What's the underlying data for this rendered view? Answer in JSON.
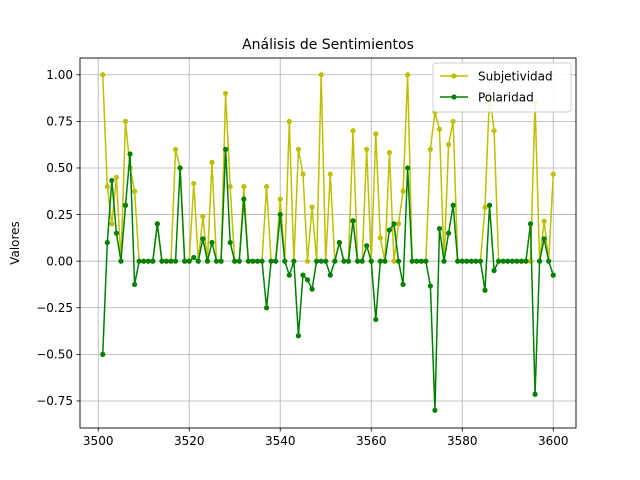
{
  "chart_data": {
    "type": "line",
    "title": "Análisis de Sentimientos",
    "xlabel": "",
    "ylabel": "Valores",
    "xlim": [
      3496,
      3605
    ],
    "ylim": [
      -0.895,
      1.09
    ],
    "x_ticks": [
      3500,
      3520,
      3540,
      3560,
      3580,
      3600
    ],
    "y_ticks": [
      -0.75,
      -0.5,
      -0.25,
      0.0,
      0.25,
      0.5,
      0.75,
      1.0
    ],
    "x_tick_labels": [
      "3500",
      "3520",
      "3540",
      "3560",
      "3580",
      "3600"
    ],
    "y_tick_labels": [
      "−0.75",
      "−0.50",
      "−0.25",
      "0.00",
      "0.25",
      "0.50",
      "0.75",
      "1.00"
    ],
    "grid": true,
    "legend_position": "top-right",
    "x": [
      3501,
      3502,
      3503,
      3504,
      3505,
      3506,
      3507,
      3508,
      3509,
      3510,
      3511,
      3512,
      3513,
      3514,
      3515,
      3516,
      3517,
      3518,
      3519,
      3520,
      3521,
      3522,
      3523,
      3524,
      3525,
      3526,
      3527,
      3528,
      3529,
      3530,
      3531,
      3532,
      3533,
      3534,
      3535,
      3536,
      3537,
      3538,
      3539,
      3540,
      3541,
      3542,
      3543,
      3544,
      3545,
      3546,
      3547,
      3548,
      3549,
      3550,
      3551,
      3552,
      3553,
      3554,
      3555,
      3556,
      3557,
      3558,
      3559,
      3560,
      3561,
      3562,
      3563,
      3564,
      3565,
      3566,
      3567,
      3568,
      3569,
      3570,
      3571,
      3572,
      3573,
      3574,
      3575,
      3576,
      3577,
      3578,
      3579,
      3580,
      3581,
      3582,
      3583,
      3584,
      3585,
      3586,
      3587,
      3588,
      3589,
      3590,
      3591,
      3592,
      3593,
      3594,
      3595,
      3596,
      3597,
      3598,
      3599,
      3600
    ],
    "series": [
      {
        "name": "Subjetividad",
        "color": "#bfbf00",
        "values": [
          1.0,
          0.4,
          0.2,
          0.45,
          0.0,
          0.75,
          0.5,
          0.375,
          0.0,
          0.0,
          0.0,
          0.0,
          0.2,
          0.0,
          0.0,
          0.0,
          0.6,
          0.5,
          0.0,
          0.0,
          0.417,
          0.0,
          0.24,
          0.0,
          0.53,
          0.0,
          0.0,
          0.9,
          0.4,
          0.0,
          0.0,
          0.4,
          0.0,
          0.0,
          0.0,
          0.0,
          0.4,
          0.0,
          0.0,
          0.333,
          0.0,
          0.75,
          0.0,
          0.6,
          0.467,
          0.0,
          0.29,
          0.0,
          1.0,
          0.0,
          0.467,
          0.0,
          0.1,
          0.0,
          0.0,
          0.7,
          0.0,
          0.0,
          0.6,
          0.0,
          0.683,
          0.125,
          0.0,
          0.583,
          0.0,
          0.2,
          0.375,
          1.0,
          0.0,
          0.0,
          0.0,
          0.0,
          0.6,
          0.8,
          0.708,
          0.0,
          0.625,
          0.75,
          0.0,
          0.0,
          0.0,
          0.0,
          0.0,
          0.0,
          0.288,
          0.9,
          0.7,
          0.0,
          0.0,
          0.0,
          0.0,
          0.0,
          0.0,
          0.0,
          0.0,
          0.85,
          0.0,
          0.215,
          0.0,
          0.467
        ]
      },
      {
        "name": "Polaridad",
        "color": "#008000",
        "values": [
          -0.5,
          0.1,
          0.433,
          0.15,
          0.0,
          0.3,
          0.575,
          -0.125,
          0.0,
          0.0,
          0.0,
          0.0,
          0.2,
          0.0,
          0.0,
          0.0,
          0.0,
          0.5,
          0.0,
          0.0,
          0.02,
          0.0,
          0.12,
          0.0,
          0.1,
          0.0,
          0.0,
          0.6,
          0.1,
          0.0,
          0.0,
          0.333,
          0.0,
          0.0,
          0.0,
          0.0,
          -0.25,
          0.0,
          0.0,
          0.25,
          0.0,
          -0.075,
          0.0,
          -0.4,
          -0.075,
          -0.1,
          -0.15,
          0.0,
          0.0,
          0.0,
          -0.075,
          0.0,
          0.1,
          0.0,
          0.0,
          0.217,
          0.0,
          0.0,
          0.083,
          0.0,
          -0.313,
          0.0,
          0.0,
          0.167,
          0.2,
          0.0,
          -0.125,
          0.5,
          0.0,
          0.0,
          0.0,
          0.0,
          -0.133,
          -0.8,
          0.175,
          0.0,
          0.15,
          0.3,
          0.0,
          0.0,
          0.0,
          0.0,
          0.0,
          0.0,
          -0.156,
          0.3,
          -0.05,
          0.0,
          0.0,
          0.0,
          0.0,
          0.0,
          0.0,
          0.0,
          0.2,
          -0.714,
          0.0,
          0.12,
          0.0,
          -0.075
        ]
      }
    ]
  }
}
